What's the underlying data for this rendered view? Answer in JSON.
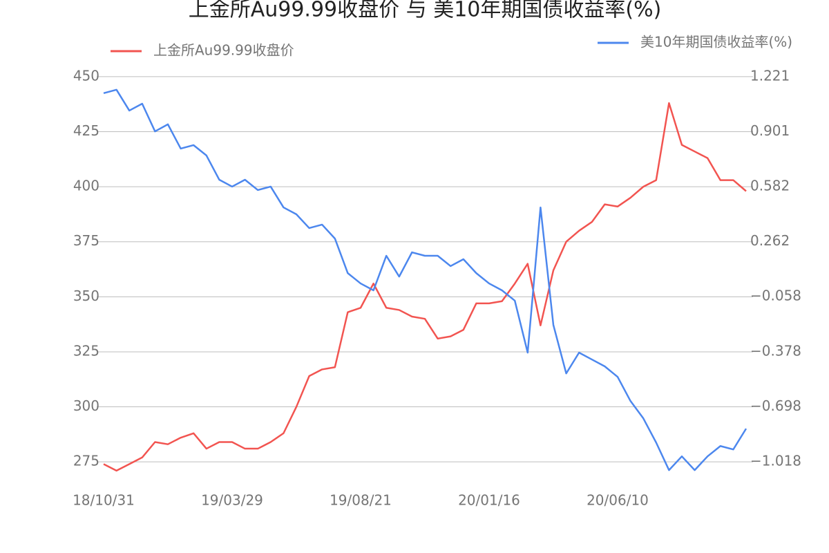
{
  "chart_data": {
    "type": "line",
    "title": "上金所Au99.99收盘价 与 美10年期国债收益率(%)",
    "categories": [
      "18/10/31",
      null,
      null,
      null,
      null,
      null,
      null,
      null,
      null,
      null,
      "19/03/29",
      null,
      null,
      null,
      null,
      null,
      null,
      null,
      null,
      null,
      "19/08/21",
      null,
      null,
      null,
      null,
      null,
      null,
      null,
      null,
      null,
      "20/01/16",
      null,
      null,
      null,
      null,
      null,
      null,
      null,
      null,
      null,
      "20/06/10",
      null,
      null,
      null,
      null,
      null,
      null,
      null,
      null,
      null,
      null
    ],
    "series": [
      {
        "name": "上金所Au99.99收盘价",
        "color": "#f25450",
        "axis": "y",
        "values": [
          274,
          271,
          274,
          277,
          284,
          283,
          286,
          288,
          281,
          284,
          284,
          281,
          281,
          284,
          288,
          300,
          314,
          317,
          318,
          343,
          345,
          356,
          345,
          344,
          341,
          340,
          331,
          332,
          335,
          347,
          347,
          348,
          356,
          365,
          337,
          362,
          375,
          380,
          384,
          392,
          391,
          395,
          400,
          403,
          438,
          419,
          416,
          413,
          403,
          403,
          398
        ]
      },
      {
        "name": "美10年期国债收益率(%)",
        "color": "#4c87ee",
        "axis": "y2",
        "values": [
          1.125,
          1.145,
          1.024,
          1.064,
          0.903,
          0.944,
          0.803,
          0.823,
          0.763,
          0.622,
          0.582,
          0.622,
          0.562,
          0.582,
          0.461,
          0.421,
          0.341,
          0.361,
          0.28,
          0.079,
          0.019,
          -0.021,
          0.18,
          0.059,
          0.2,
          0.18,
          0.18,
          0.12,
          0.16,
          0.079,
          0.019,
          -0.021,
          -0.081,
          -0.383,
          0.461,
          -0.222,
          -0.504,
          -0.383,
          -0.423,
          -0.463,
          -0.524,
          -0.664,
          -0.765,
          -0.906,
          -1.066,
          -0.986,
          -1.066,
          -0.986,
          -0.926,
          -0.946,
          -0.825
        ]
      }
    ],
    "ylim": [
      265,
      455
    ],
    "yticks": [
      275,
      300,
      325,
      350,
      375,
      400,
      425,
      450
    ],
    "y2lim": [
      -1.146,
      1.285
    ],
    "y2ticks": [
      {
        "value": -1.018,
        "label": "−1.018"
      },
      {
        "value": -0.698,
        "label": "−0.698"
      },
      {
        "value": -0.378,
        "label": "−0.378"
      },
      {
        "value": -0.058,
        "label": "−0.058"
      },
      0.262,
      0.582,
      0.901,
      1.221
    ],
    "grid": true
  }
}
